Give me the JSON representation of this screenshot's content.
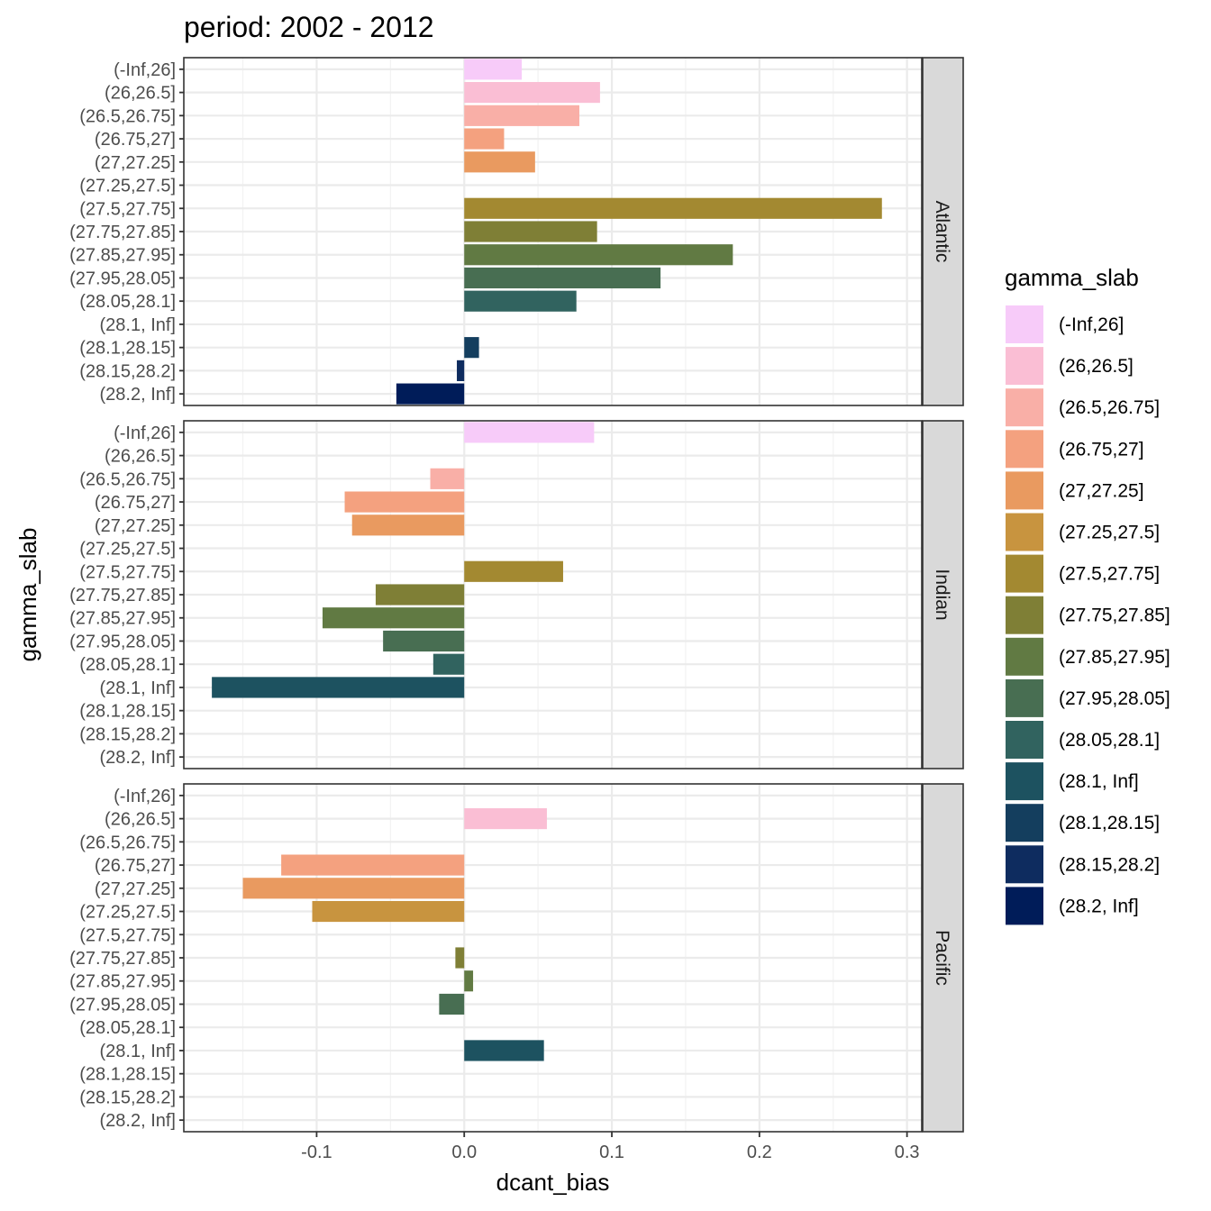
{
  "chart_data": {
    "type": "bar",
    "orientation": "horizontal",
    "title": "period: 2002 - 2012",
    "xlabel": "dcant_bias",
    "ylabel": "gamma_slab",
    "xlim": [
      -0.19,
      0.31
    ],
    "x_ticks": [
      -0.1,
      0.0,
      0.1,
      0.2,
      0.3
    ],
    "x_tick_labels": [
      "-0.1",
      "0.0",
      "0.1",
      "0.2",
      "0.3"
    ],
    "grid": true,
    "legend_position": "right",
    "legend_title": "gamma_slab",
    "categories": [
      "(-Inf,26]",
      "(26,26.5]",
      "(26.5,26.75]",
      "(26.75,27]",
      "(27,27.25]",
      "(27.25,27.5]",
      "(27.5,27.75]",
      "(27.75,27.85]",
      "(27.85,27.95]",
      "(27.95,28.05]",
      "(28.05,28.1]",
      "(28.1, Inf]",
      "(28.1,28.15]",
      "(28.15,28.2]",
      "(28.2, Inf]"
    ],
    "colors": [
      "#F7CBF9",
      "#FABED4",
      "#F9AFA7",
      "#F4A17F",
      "#E99A60",
      "#C8943F",
      "#A38931",
      "#7F7F36",
      "#617A43",
      "#486E52",
      "#31635F",
      "#1D5260",
      "#143E5E",
      "#0E2C5F",
      "#001C59"
    ],
    "facets": [
      {
        "name": "Atlantic",
        "values": [
          0.039,
          0.092,
          0.078,
          0.027,
          0.048,
          null,
          0.283,
          0.09,
          0.182,
          0.133,
          0.076,
          null,
          0.01,
          -0.005,
          -0.046
        ]
      },
      {
        "name": "Indian",
        "values": [
          0.088,
          null,
          -0.023,
          -0.081,
          -0.076,
          null,
          0.067,
          -0.06,
          -0.096,
          -0.055,
          -0.021,
          -0.171,
          null,
          null,
          null
        ]
      },
      {
        "name": "Pacific",
        "values": [
          null,
          0.056,
          null,
          -0.124,
          -0.15,
          -0.103,
          null,
          -0.006,
          0.006,
          -0.017,
          null,
          0.054,
          null,
          null,
          null
        ]
      }
    ]
  }
}
